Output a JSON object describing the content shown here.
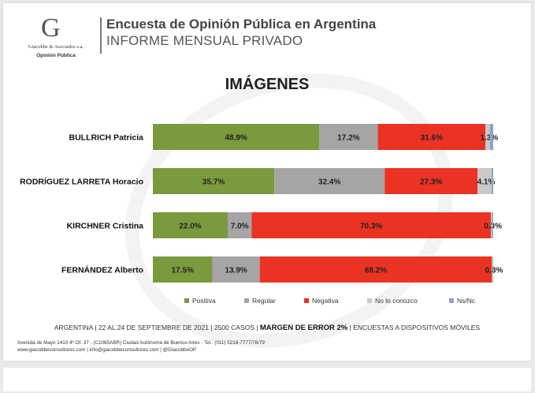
{
  "header": {
    "logo_name": "Giacobbe & Asociados s.a.",
    "logo_sub": "Opinión Pública",
    "title": "Encuesta de Opinión Pública en Argentina",
    "subtitle": "INFORME MENSUAL PRIVADO"
  },
  "footer": {
    "survey_info": "ARGENTINA | 22 AL 24 DE SEPTIEMBRE DE 2021 | 2500 CASOS |",
    "margin": "MARGEN DE ERROR 2%",
    "method": "| ENCUESTAS A DISPOSITIVOS MÓVILES",
    "address": "Avenida de Mayo 1410 4º Of. 37 - (C1085ABR) Ciudad Autónoma de Buenos Aires - Tel.: (011) 5218-7777/78/79",
    "web": "www.giacobbeconsultores.com | info@giacobbeconsultores.com | @GiacobbeOP"
  },
  "colors": {
    "Positiva": "#7a9a3e",
    "Regular": "#a5a5a5",
    "Negativa": "#ea3323",
    "No lo conozco": "#c9c9c9",
    "Ns/Nc": "#8fa3c9"
  },
  "chart_data": {
    "type": "bar",
    "orientation": "horizontal-stacked-100",
    "title": "IMÁGENES",
    "categories": [
      "BULLRICH Patricia",
      "RODRÍGUEZ LARRETA Horacio",
      "KIRCHNER Cristina",
      "FERNÁNDEZ Alberto"
    ],
    "series": [
      {
        "name": "Positiva",
        "values": [
          48.9,
          35.7,
          22.0,
          17.5
        ],
        "labels": [
          "48.9%",
          "35.7%",
          "22.0%",
          "17.5%"
        ]
      },
      {
        "name": "Regular",
        "values": [
          17.2,
          32.4,
          7.0,
          13.9
        ],
        "labels": [
          "17.2%",
          "32.4%",
          "7.0%",
          "13.9%"
        ]
      },
      {
        "name": "Negativa",
        "values": [
          31.6,
          27.3,
          70.3,
          68.2
        ],
        "labels": [
          "31.6%",
          "27.3%",
          "70.3%",
          "68.2%"
        ]
      },
      {
        "name": "No lo conozco",
        "values": [
          1.3,
          4.1,
          0.3,
          0.3
        ],
        "labels": [
          "1.3%",
          "4.1%",
          "0.3%",
          "0.3%"
        ]
      },
      {
        "name": "Ns/Nc",
        "values": [
          1.0,
          0.5,
          0.4,
          0.1
        ],
        "labels": [
          "",
          "",
          "",
          ""
        ]
      }
    ],
    "legend_position": "bottom"
  }
}
